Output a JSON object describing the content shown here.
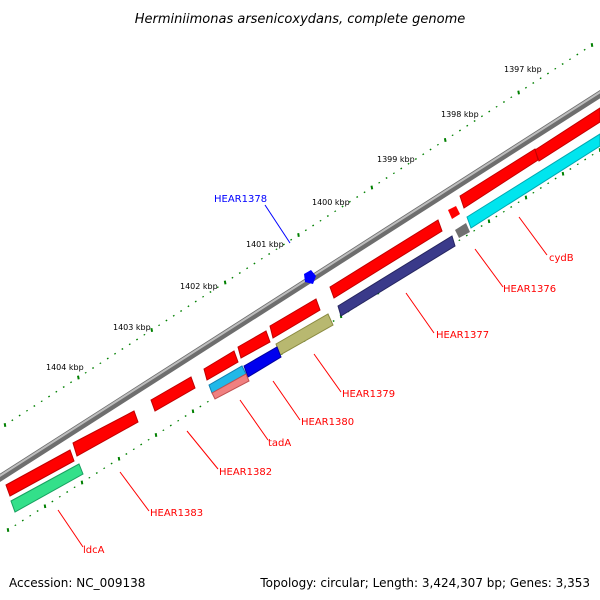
{
  "title": "Herminiimonas arsenicoxydans, complete genome",
  "accession_label": "Accession: NC_009138",
  "topology_label": "Topology: circular; Length: 3,424,307 bp; Genes: 3,353",
  "colors": {
    "backbone": "#808080",
    "tick": "#008000",
    "red_gene": "#ff0000",
    "label_red": "#ff0000",
    "label_blue": "#0000ff"
  },
  "scale_labels": [
    "1397 kbp",
    "1398 kbp",
    "1399 kbp",
    "1400 kbp",
    "1401 kbp",
    "1402 kbp",
    "1403 kbp",
    "1404 kbp"
  ],
  "gene_labels": [
    {
      "text": "HEAR1378",
      "color": "blue"
    },
    {
      "text": "cydB",
      "color": "red"
    },
    {
      "text": "HEAR1376",
      "color": "red"
    },
    {
      "text": "HEAR1377",
      "color": "red"
    },
    {
      "text": "HEAR1379",
      "color": "red"
    },
    {
      "text": "HEAR1380",
      "color": "red"
    },
    {
      "text": "tadA",
      "color": "red"
    },
    {
      "text": "HEAR1382",
      "color": "red"
    },
    {
      "text": "HEAR1383",
      "color": "red"
    },
    {
      "text": "ldcA",
      "color": "red"
    }
  ]
}
